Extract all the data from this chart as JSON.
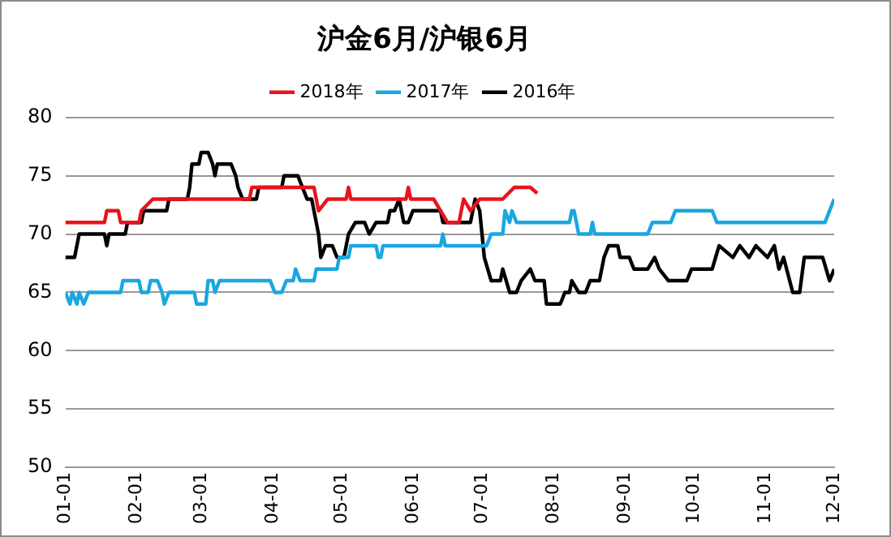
{
  "chart_data": {
    "type": "line",
    "title": "沪金6月/沪银6月",
    "xlim": [
      "--01-01",
      "--12-01"
    ],
    "xticks": [
      {
        "value": "--01-01",
        "label": "01-01"
      },
      {
        "value": "--02-01",
        "label": "02-01"
      },
      {
        "value": "--03-01",
        "label": "03-01"
      },
      {
        "value": "--04-01",
        "label": "04-01"
      },
      {
        "value": "--05-01",
        "label": "05-01"
      },
      {
        "value": "--06-01",
        "label": "06-01"
      },
      {
        "value": "--07-01",
        "label": "07-01"
      },
      {
        "value": "--08-01",
        "label": "08-01"
      },
      {
        "value": "--09-01",
        "label": "09-01"
      },
      {
        "value": "--10-01",
        "label": "10-01"
      },
      {
        "value": "--11-01",
        "label": "11-01"
      },
      {
        "value": "--12-01",
        "label": "12-01"
      }
    ],
    "ylim": [
      50,
      80
    ],
    "yticks": [
      50,
      55,
      60,
      65,
      70,
      75,
      80
    ],
    "grid": "y",
    "legend": "top",
    "marker": "none",
    "line_style": "solid",
    "series": [
      {
        "name": "2018年",
        "color": "#e8141c",
        "x": [
          "--01-01",
          "--01-18",
          "--01-19",
          "--01-24",
          "--01-25",
          "--02-02",
          "--02-03",
          "--02-08",
          "--03-22",
          "--03-23",
          "--04-19",
          "--04-21",
          "--04-25",
          "--05-03",
          "--05-04",
          "--05-05",
          "--05-29",
          "--05-30",
          "--05-31",
          "--06-10",
          "--06-13",
          "--06-16",
          "--06-21",
          "--06-23",
          "--06-26",
          "--06-30",
          "--07-10",
          "--07-15",
          "--07-22",
          "--07-25"
        ],
        "values": [
          71,
          71,
          72,
          72,
          71,
          71,
          72,
          73,
          73,
          74,
          74,
          72,
          73,
          73,
          74,
          73,
          73,
          74,
          73,
          73,
          72,
          71,
          71,
          73,
          72,
          73,
          73,
          74,
          74,
          73.5
        ]
      },
      {
        "name": "2017年",
        "color": "#1aa7e0",
        "x": [
          "--01-01",
          "--01-03",
          "--01-04",
          "--01-06",
          "--01-07",
          "--01-09",
          "--01-11",
          "--01-25",
          "--01-26",
          "--02-02",
          "--02-03",
          "--02-06",
          "--02-07",
          "--02-10",
          "--02-12",
          "--02-13",
          "--02-15",
          "--02-26",
          "--02-27",
          "--03-03",
          "--03-04",
          "--03-06",
          "--03-07",
          "--03-09",
          "--03-31",
          "--04-02",
          "--04-05",
          "--04-07",
          "--04-10",
          "--04-11",
          "--04-13",
          "--04-19",
          "--04-20",
          "--04-29",
          "--04-30",
          "--05-04",
          "--05-05",
          "--05-16",
          "--05-17",
          "--05-18",
          "--05-19",
          "--06-13",
          "--06-14",
          "--06-15",
          "--07-03",
          "--07-05",
          "--07-10",
          "--07-11",
          "--07-13",
          "--07-14",
          "--07-16",
          "--08-08",
          "--08-09",
          "--08-10",
          "--08-12",
          "--08-17",
          "--08-18",
          "--08-19",
          "--09-11",
          "--09-13",
          "--09-21",
          "--09-23",
          "--10-09",
          "--10-11",
          "--11-27",
          "--11-29",
          "--12-01"
        ],
        "values": [
          65,
          64,
          65,
          64,
          65,
          64,
          65,
          65,
          66,
          66,
          65,
          65,
          66,
          66,
          65,
          64,
          65,
          65,
          64,
          64,
          66,
          66,
          65,
          66,
          66,
          65,
          65,
          66,
          66,
          67,
          66,
          66,
          67,
          67,
          68,
          68,
          69,
          69,
          68,
          68,
          69,
          69,
          70,
          69,
          69,
          70,
          70,
          72,
          71,
          72,
          71,
          71,
          72,
          72,
          70,
          70,
          71,
          70,
          70,
          71,
          71,
          72,
          72,
          71,
          71,
          72,
          73
        ]
      },
      {
        "name": "2016年",
        "color": "#000000",
        "x": [
          "--01-01",
          "--01-05",
          "--01-06",
          "--01-07",
          "--01-18",
          "--01-19",
          "--01-20",
          "--01-27",
          "--01-28",
          "--02-03",
          "--02-04",
          "--02-14",
          "--02-15",
          "--02-23",
          "--02-24",
          "--02-25",
          "--02-28",
          "--03-01",
          "--03-04",
          "--03-06",
          "--03-07",
          "--03-08",
          "--03-14",
          "--03-16",
          "--03-17",
          "--03-19",
          "--03-25",
          "--03-26",
          "--04-05",
          "--04-06",
          "--04-12",
          "--04-14",
          "--04-16",
          "--04-18",
          "--04-19",
          "--04-21",
          "--04-22",
          "--04-24",
          "--04-27",
          "--04-29",
          "--05-02",
          "--05-04",
          "--05-07",
          "--05-11",
          "--05-13",
          "--05-16",
          "--05-21",
          "--05-22",
          "--05-24",
          "--05-26",
          "--05-28",
          "--05-30",
          "--06-01",
          "--06-13",
          "--06-14",
          "--06-26",
          "--06-28",
          "--06-30",
          "--07-01",
          "--07-02",
          "--07-05",
          "--07-09",
          "--07-10",
          "--07-13",
          "--07-16",
          "--07-18",
          "--07-22",
          "--07-24",
          "--07-28",
          "--07-29",
          "--08-04",
          "--08-06",
          "--08-08",
          "--08-09",
          "--08-12",
          "--08-15",
          "--08-17",
          "--08-21",
          "--08-23",
          "--08-25",
          "--08-29",
          "--08-30",
          "--09-03",
          "--09-05",
          "--09-11",
          "--09-14",
          "--09-16",
          "--09-20",
          "--09-28",
          "--09-30",
          "--10-09",
          "--10-12",
          "--10-18",
          "--10-21",
          "--10-25",
          "--10-28",
          "--11-02",
          "--11-05",
          "--11-07",
          "--11-09",
          "--11-13",
          "--11-16",
          "--11-18",
          "--11-26",
          "--11-29",
          "--12-01"
        ],
        "values": [
          68,
          68,
          69,
          70,
          70,
          69,
          70,
          70,
          71,
          71,
          72,
          72,
          73,
          73,
          74,
          76,
          76,
          77,
          77,
          76,
          75,
          76,
          76,
          75,
          74,
          73,
          73,
          74,
          74,
          75,
          75,
          74,
          73,
          73,
          72,
          70,
          68,
          69,
          69,
          68,
          68,
          70,
          71,
          71,
          70,
          71,
          71,
          72,
          72,
          73,
          71,
          71,
          72,
          72,
          71,
          71,
          73,
          72,
          70,
          68,
          66,
          66,
          67,
          65,
          65,
          66,
          67,
          66,
          66,
          64,
          64,
          65,
          65,
          66,
          65,
          65,
          66,
          66,
          68,
          69,
          69,
          68,
          68,
          67,
          67,
          68,
          67,
          66,
          66,
          67,
          67,
          69,
          68,
          69,
          68,
          69,
          68,
          69,
          67,
          68,
          65,
          65,
          68,
          68,
          66,
          67
        ]
      }
    ]
  }
}
